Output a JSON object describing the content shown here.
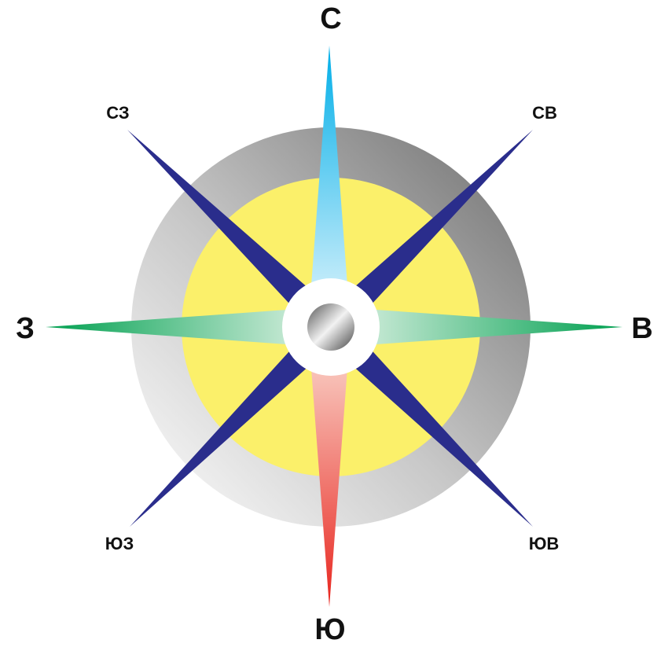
{
  "labels": {
    "n": "С",
    "ne": "СВ",
    "e": "В",
    "se": "ЮВ",
    "s": "Ю",
    "sw": "ЮЗ",
    "w": "З",
    "nw": "СЗ"
  }
}
